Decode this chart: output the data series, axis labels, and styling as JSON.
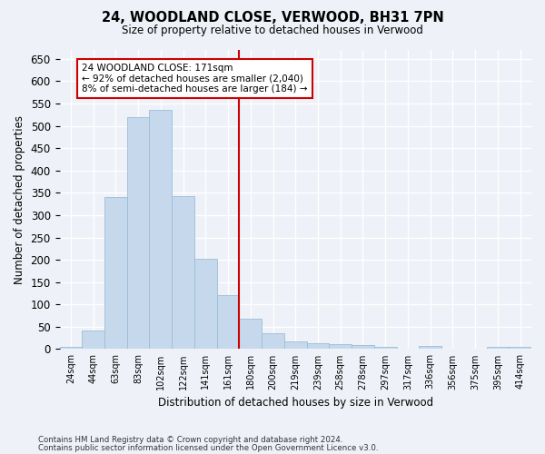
{
  "title1": "24, WOODLAND CLOSE, VERWOOD, BH31 7PN",
  "title2": "Size of property relative to detached houses in Verwood",
  "xlabel": "Distribution of detached houses by size in Verwood",
  "ylabel": "Number of detached properties",
  "bar_labels": [
    "24sqm",
    "44sqm",
    "63sqm",
    "83sqm",
    "102sqm",
    "122sqm",
    "141sqm",
    "161sqm",
    "180sqm",
    "200sqm",
    "219sqm",
    "239sqm",
    "258sqm",
    "278sqm",
    "297sqm",
    "317sqm",
    "336sqm",
    "356sqm",
    "375sqm",
    "395sqm",
    "414sqm"
  ],
  "bar_values": [
    5,
    42,
    340,
    520,
    535,
    342,
    203,
    120,
    67,
    36,
    18,
    14,
    12,
    8,
    5,
    0,
    6,
    0,
    0,
    5,
    5
  ],
  "bar_color": "#c6d9ec",
  "bar_edgecolor": "#9bbdd6",
  "ref_line_x": 8,
  "ref_line_color": "#cc0000",
  "annotation_text": "24 WOODLAND CLOSE: 171sqm\n← 92% of detached houses are smaller (2,040)\n8% of semi-detached houses are larger (184) →",
  "annotation_box_color": "#ffffff",
  "annotation_box_edgecolor": "#cc0000",
  "ylim": [
    0,
    670
  ],
  "yticks": [
    0,
    50,
    100,
    150,
    200,
    250,
    300,
    350,
    400,
    450,
    500,
    550,
    600,
    650
  ],
  "footer1": "Contains HM Land Registry data © Crown copyright and database right 2024.",
  "footer2": "Contains public sector information licensed under the Open Government Licence v3.0.",
  "bg_color": "#eef2f8",
  "grid_color": "#ffffff"
}
